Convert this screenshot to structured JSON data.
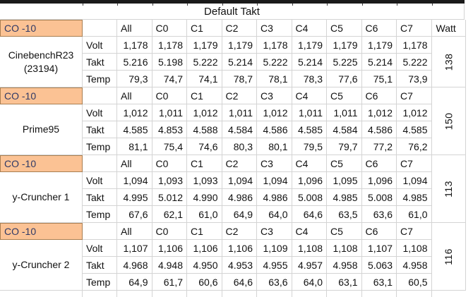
{
  "title": "Default Takt",
  "co_label": "CO -10",
  "columns": [
    "All",
    "C0",
    "C1",
    "C2",
    "C3",
    "C4",
    "C5",
    "C6",
    "C7"
  ],
  "watt_header": "Watt",
  "row_labels": [
    "Volt",
    "Takt",
    "Temp"
  ],
  "blocks": [
    {
      "name": "CinebenchR23 (23194)",
      "watt": "138",
      "rows": [
        {
          "label": "Volt",
          "values": [
            "1,178",
            "1,178",
            "1,179",
            "1,179",
            "1,178",
            "1,179",
            "1,179",
            "1,179",
            "1,178"
          ]
        },
        {
          "label": "Takt",
          "values": [
            "5.216",
            "5.198",
            "5.222",
            "5.214",
            "5.222",
            "5.214",
            "5.225",
            "5.214",
            "5.222"
          ]
        },
        {
          "label": "Temp",
          "values": [
            "79,3",
            "74,7",
            "74,1",
            "78,7",
            "78,1",
            "78,3",
            "77,6",
            "75,1",
            "73,9"
          ]
        }
      ]
    },
    {
      "name": "Prime95",
      "watt": "150",
      "rows": [
        {
          "label": "Volt",
          "values": [
            "1,012",
            "1,011",
            "1,012",
            "1,011",
            "1,012",
            "1,011",
            "1,011",
            "1,012",
            "1,012"
          ]
        },
        {
          "label": "Takt",
          "values": [
            "4.585",
            "4.853",
            "4.588",
            "4.584",
            "4.586",
            "4.585",
            "4.584",
            "4.586",
            "4.585"
          ]
        },
        {
          "label": "Temp",
          "values": [
            "81,1",
            "75,4",
            "74,6",
            "80,3",
            "80,1",
            "79,5",
            "79,7",
            "77,2",
            "76,2"
          ]
        }
      ]
    },
    {
      "name": "y-Cruncher 1",
      "watt": "113",
      "rows": [
        {
          "label": "Volt",
          "values": [
            "1,094",
            "1,093",
            "1,093",
            "1,094",
            "1,094",
            "1,096",
            "1,095",
            "1,096",
            "1,094"
          ]
        },
        {
          "label": "Takt",
          "values": [
            "4.995",
            "5.012",
            "4.990",
            "4.986",
            "4.986",
            "5.008",
            "4.985",
            "5.008",
            "4.985"
          ]
        },
        {
          "label": "Temp",
          "values": [
            "67,6",
            "62,1",
            "61,0",
            "64,9",
            "64,0",
            "64,6",
            "63,5",
            "63,6",
            "61,0"
          ]
        }
      ]
    },
    {
      "name": "y-Cruncher 2",
      "watt": "116",
      "rows": [
        {
          "label": "Volt",
          "values": [
            "1,107",
            "1,106",
            "1,106",
            "1,106",
            "1,109",
            "1,108",
            "1,108",
            "1,107",
            "1,108"
          ]
        },
        {
          "label": "Takt",
          "values": [
            "4.968",
            "4.948",
            "4.950",
            "4.953",
            "4.955",
            "4.957",
            "4.958",
            "5.063",
            "4.958"
          ]
        },
        {
          "label": "Temp",
          "values": [
            "64,9",
            "61,7",
            "60,6",
            "64,6",
            "63,6",
            "64,0",
            "63,1",
            "63,1",
            "60,5"
          ]
        }
      ]
    }
  ],
  "colors": {
    "highlight_bg": "#FBC294",
    "highlight_border": "#A97F52",
    "highlight_text": "#2F3966",
    "gridline": "#D4D4D4",
    "top_bar": "#1A1A1A",
    "text": "#111111"
  }
}
